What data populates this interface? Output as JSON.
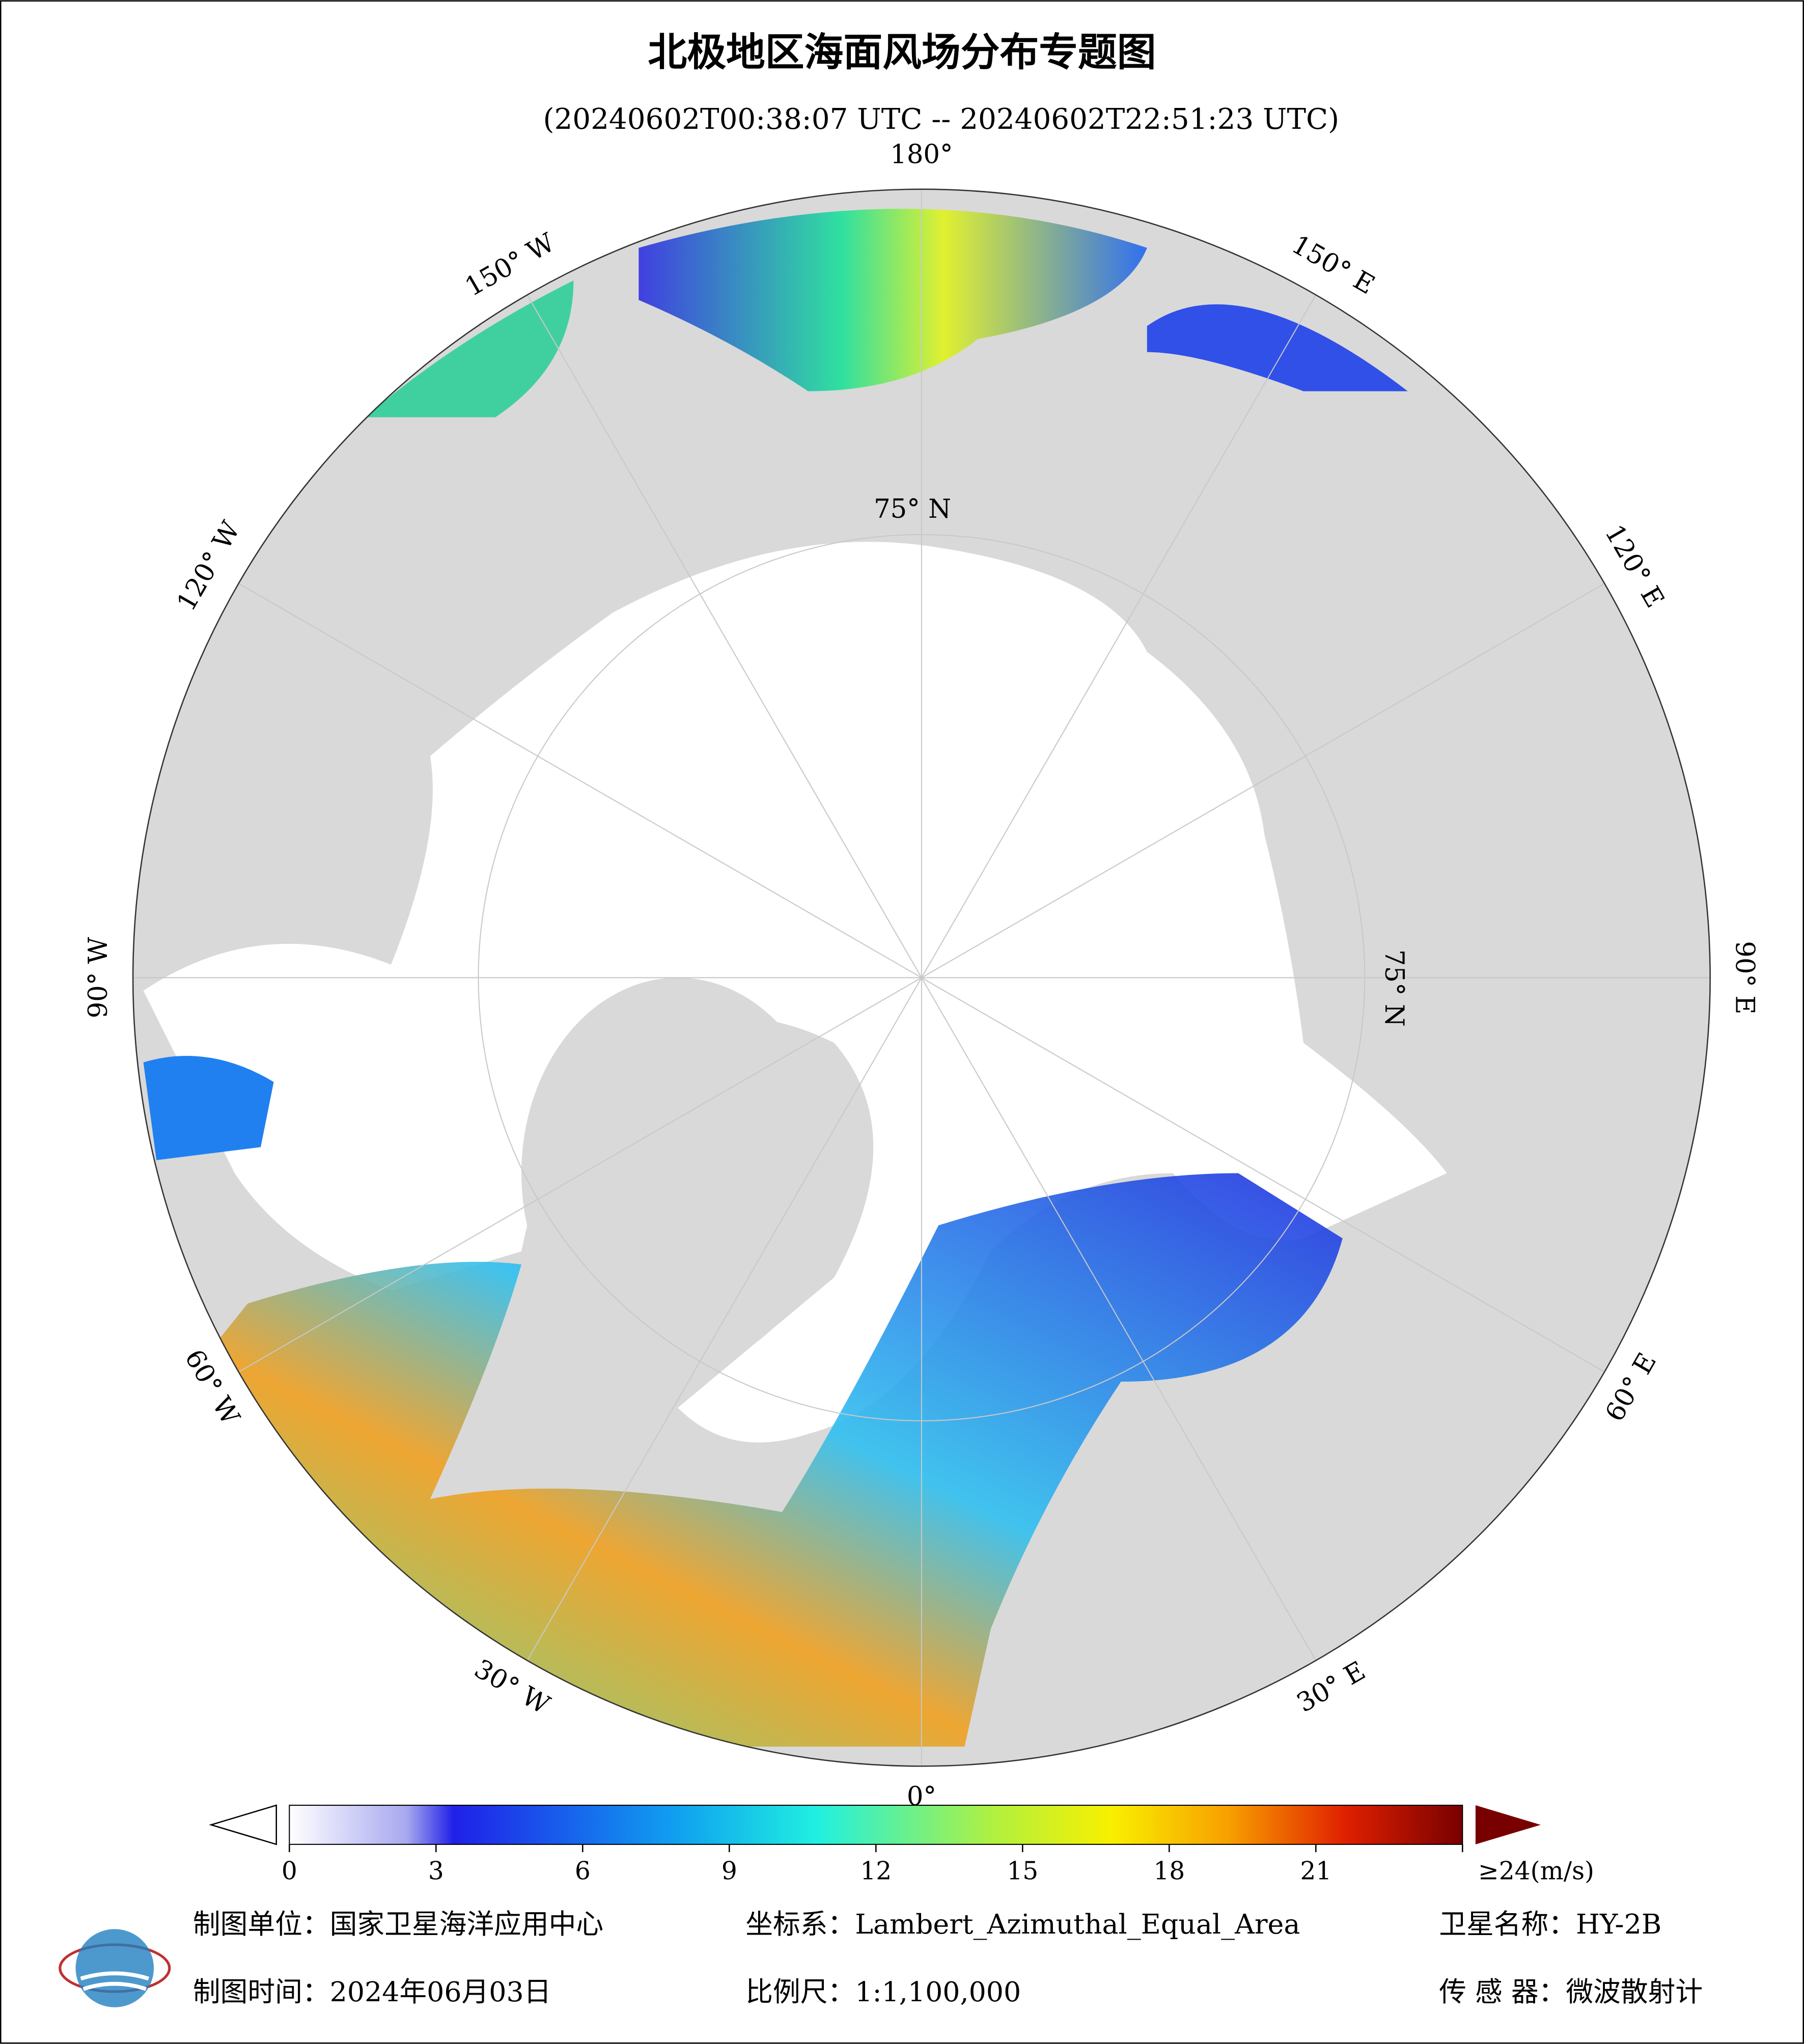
{
  "title": "北极地区海面风场分布专题图",
  "subtitle": "(20240602T00:38:07 UTC -- 20240602T22:51:23 UTC)",
  "map": {
    "lon_labels": [
      {
        "value": 180,
        "label": "180°"
      },
      {
        "value": 150,
        "label": "150° E"
      },
      {
        "value": 120,
        "label": "120° E"
      },
      {
        "value": 90,
        "label": "90° E"
      },
      {
        "value": 60,
        "label": "60° E"
      },
      {
        "value": 30,
        "label": "30° E"
      },
      {
        "value": 0,
        "label": "0°"
      },
      {
        "value": -30,
        "label": "30° W"
      },
      {
        "value": -60,
        "label": "60° W"
      },
      {
        "value": -90,
        "label": "90° W"
      },
      {
        "value": -120,
        "label": "120° W"
      },
      {
        "value": -150,
        "label": "150° W"
      }
    ],
    "lat_labels": [
      "75° N",
      "75° N"
    ]
  },
  "colorbar": {
    "lim": [
      0,
      24
    ],
    "ticks": [
      0,
      3,
      6,
      9,
      12,
      15,
      18,
      21,
      {
        "value": 24,
        "label": "≥24(m/s)"
      }
    ]
  },
  "footer": {
    "unit": "制图单位：国家卫星海洋应用中心",
    "date": "制图时间：2024年06月03日",
    "crs": "坐标系：Lambert_Azimuthal_Equal_Area",
    "scale": "比例尺：1:1,100,000",
    "satellite": "卫星名称：HY-2B",
    "sensor": "传 感 器：微波散射计"
  }
}
